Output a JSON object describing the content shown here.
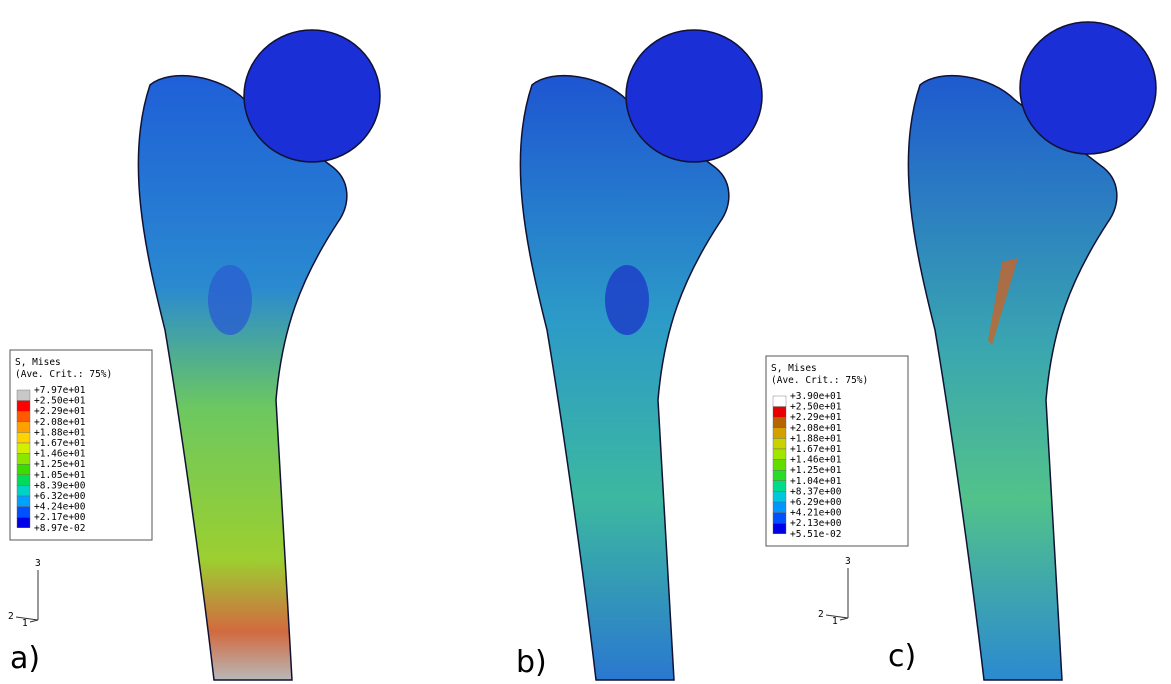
{
  "panels": [
    {
      "label": "a)",
      "triad": [
        "1",
        "2",
        "3"
      ],
      "legend": {
        "title": "S, Mises",
        "subtitle": "(Ave. Crit.: 75%)",
        "levels": [
          "+7.97e+01",
          "+2.50e+01",
          "+2.29e+01",
          "+2.08e+01",
          "+1.88e+01",
          "+1.67e+01",
          "+1.46e+01",
          "+1.25e+01",
          "+1.05e+01",
          "+8.39e+00",
          "+6.32e+00",
          "+4.24e+00",
          "+2.17e+00",
          "+8.97e-02"
        ],
        "band_colors": [
          "#c8c8c8",
          "#ff0000",
          "#ff5a00",
          "#ffa000",
          "#ffd200",
          "#d2f000",
          "#8ce600",
          "#3cdc00",
          "#00dc5a",
          "#00d2c8",
          "#00a0ff",
          "#0050ff",
          "#0000e6"
        ]
      }
    },
    {
      "label": "b)"
    },
    {
      "label": "c)",
      "triad": [
        "1",
        "2",
        "3"
      ],
      "legend": {
        "title": "S, Mises",
        "subtitle": "(Ave. Crit.: 75%)",
        "levels": [
          "+3.90e+01",
          "+2.50e+01",
          "+2.29e+01",
          "+2.08e+01",
          "+1.88e+01",
          "+1.67e+01",
          "+1.46e+01",
          "+1.25e+01",
          "+1.04e+01",
          "+8.37e+00",
          "+6.29e+00",
          "+4.21e+00",
          "+2.13e+00",
          "+5.51e-02"
        ],
        "band_colors": [
          "#ffffff",
          "#e60000",
          "#b46400",
          "#d2a000",
          "#c8d200",
          "#a0e600",
          "#64dc00",
          "#28dc28",
          "#00dc8c",
          "#00c8dc",
          "#0096ff",
          "#0050ff",
          "#0000e6"
        ]
      }
    }
  ]
}
